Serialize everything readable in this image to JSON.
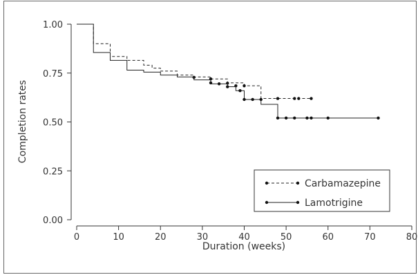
{
  "chart_data": {
    "type": "line",
    "xlabel": "Duration (weeks)",
    "ylabel": "Completion rates",
    "xlim": [
      0,
      80
    ],
    "ylim": [
      0,
      1
    ],
    "x_ticks": [
      "0",
      "10",
      "20",
      "30",
      "40",
      "50",
      "60",
      "70",
      "80"
    ],
    "y_ticks": [
      "0.00",
      "0.25",
      "0.50",
      "0.75",
      "1.00"
    ],
    "grid": false,
    "legend_position": "bottom-right",
    "series": [
      {
        "name": "Carbamazepine",
        "style": "dashed",
        "color": "#222222",
        "steps": [
          [
            0,
            1.0
          ],
          [
            4,
            0.9
          ],
          [
            8,
            0.835
          ],
          [
            12,
            0.815
          ],
          [
            16,
            0.79
          ],
          [
            18,
            0.775
          ],
          [
            20,
            0.76
          ],
          [
            24,
            0.74
          ],
          [
            28,
            0.73
          ],
          [
            32,
            0.72
          ],
          [
            36,
            0.7
          ],
          [
            40,
            0.685
          ],
          [
            44,
            0.62
          ],
          [
            56,
            0.62
          ]
        ],
        "censored": [
          [
            28,
            0.728
          ],
          [
            32,
            0.72
          ],
          [
            36,
            0.698
          ],
          [
            38,
            0.685
          ],
          [
            40,
            0.685
          ],
          [
            48,
            0.62
          ],
          [
            52,
            0.62
          ],
          [
            53,
            0.62
          ],
          [
            56,
            0.62
          ]
        ]
      },
      {
        "name": "Lamotrigine",
        "style": "solid",
        "color": "#222222",
        "steps": [
          [
            0,
            1.0
          ],
          [
            4,
            0.855
          ],
          [
            8,
            0.815
          ],
          [
            12,
            0.765
          ],
          [
            16,
            0.755
          ],
          [
            20,
            0.74
          ],
          [
            24,
            0.73
          ],
          [
            28,
            0.715
          ],
          [
            32,
            0.695
          ],
          [
            36,
            0.68
          ],
          [
            38,
            0.66
          ],
          [
            40,
            0.615
          ],
          [
            44,
            0.59
          ],
          [
            48,
            0.52
          ],
          [
            72,
            0.52
          ]
        ],
        "censored": [
          [
            32,
            0.7
          ],
          [
            34,
            0.695
          ],
          [
            36,
            0.68
          ],
          [
            39,
            0.66
          ],
          [
            40,
            0.615
          ],
          [
            42,
            0.615
          ],
          [
            44,
            0.615
          ],
          [
            48,
            0.52
          ],
          [
            50,
            0.52
          ],
          [
            52,
            0.52
          ],
          [
            55,
            0.52
          ],
          [
            56,
            0.52
          ],
          [
            60,
            0.52
          ],
          [
            72,
            0.52
          ]
        ]
      }
    ]
  }
}
